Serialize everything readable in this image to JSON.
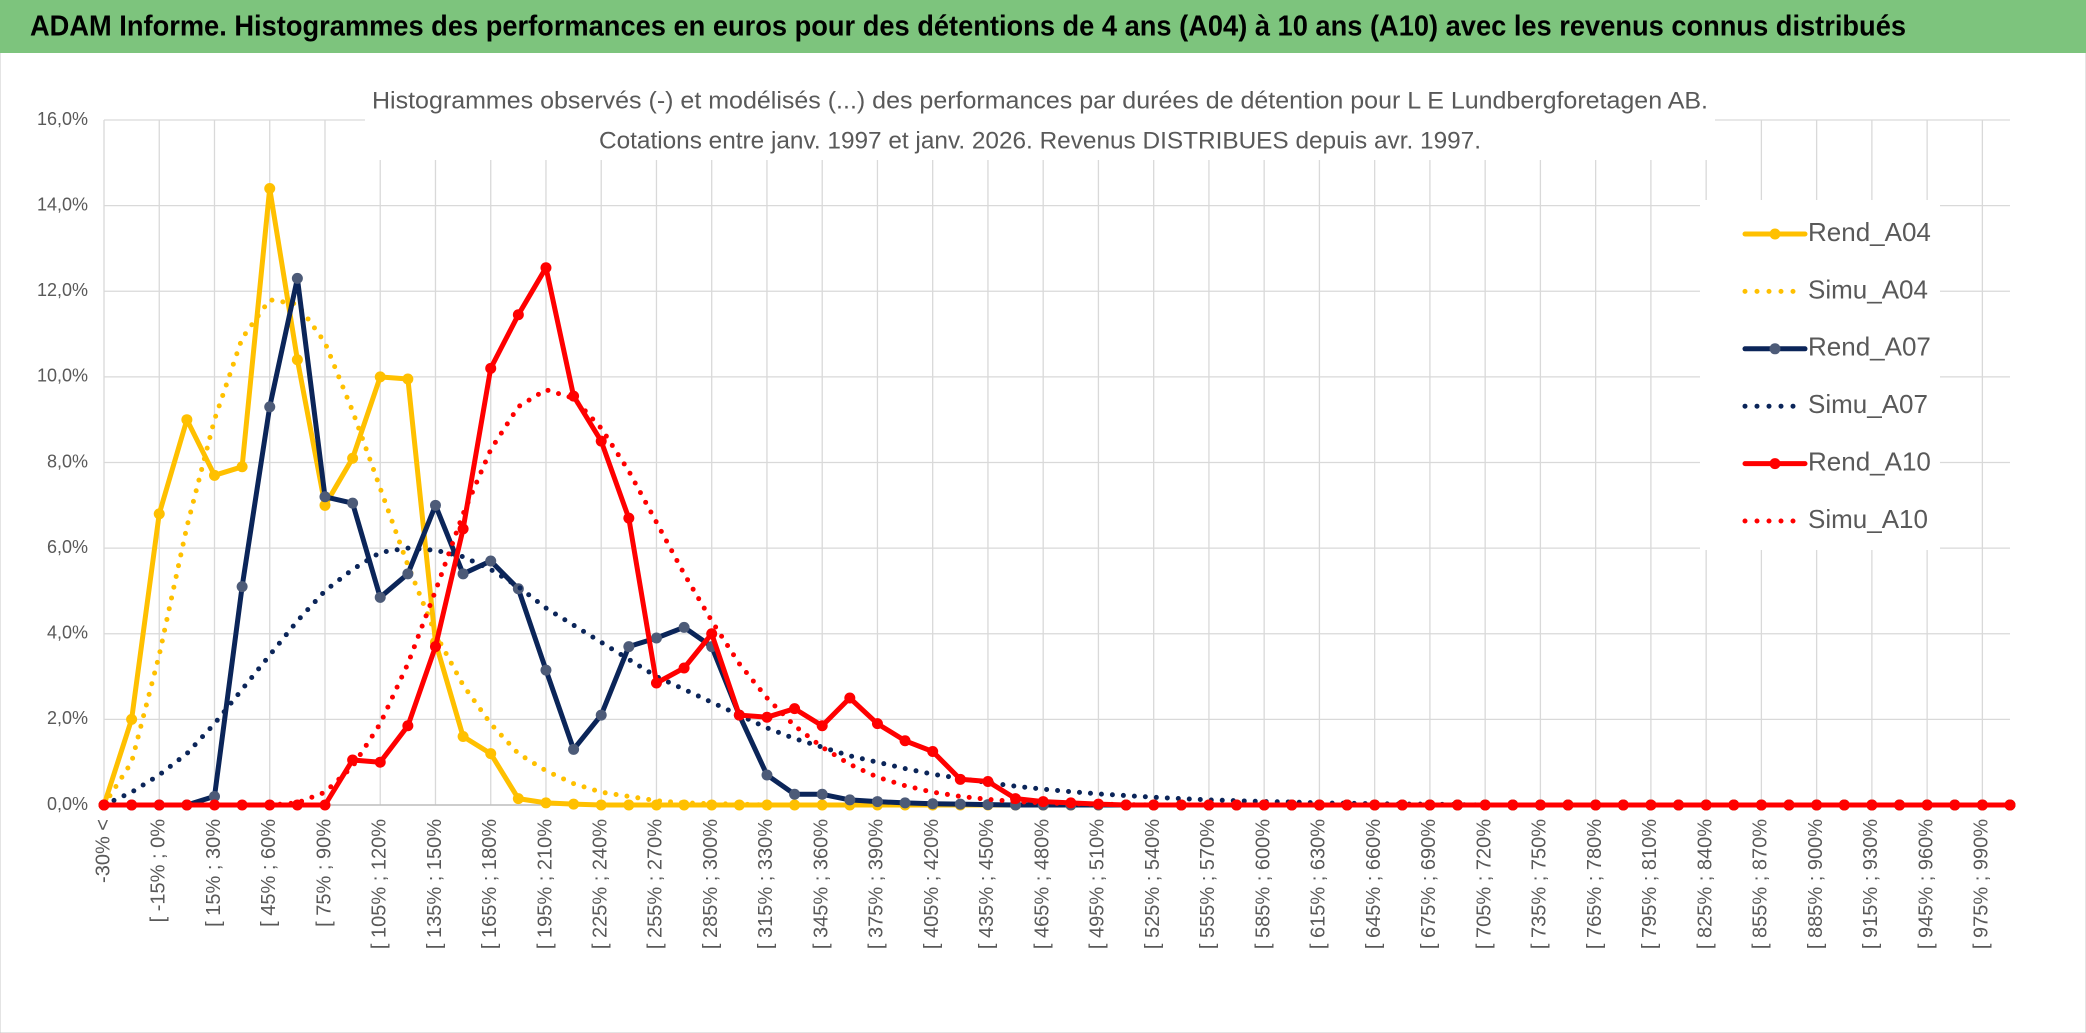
{
  "header": {
    "title": "ADAM Informe. Histogrammes des performances en euros pour des détentions de 4 ans (A04) à 10 ans (A10) avec les revenus connus distribués"
  },
  "chart_data": {
    "type": "line",
    "title": "Histogrammes observés (-) et modélisés (...) des performances par durées de détention pour L E Lundbergforetagen AB.",
    "subtitle": "Cotations entre janv. 1997 et janv. 2026. Revenus DISTRIBUES depuis avr. 1997.",
    "categories": [
      "-30% <",
      null,
      "[ -15% ; 0%",
      null,
      "[ 15% ; 30%",
      null,
      "[ 45% ; 60%",
      null,
      "[ 75% ; 90%",
      null,
      "[ 105% ; 120%",
      null,
      "[ 135% ; 150%",
      null,
      "[ 165% ; 180%",
      null,
      "[ 195% ; 210%",
      null,
      "[ 225% ; 240%",
      null,
      "[ 255% ; 270%",
      null,
      "[ 285% ; 300%",
      null,
      "[ 315% ; 330%",
      null,
      "[ 345% ; 360%",
      null,
      "[ 375% ; 390%",
      null,
      "[ 405% ; 420%",
      null,
      "[ 435% ; 450%",
      null,
      "[ 465% ; 480%",
      null,
      "[ 495% ; 510%",
      null,
      "[ 525% ; 540%",
      null,
      "[ 555% ; 570%",
      null,
      "[ 585% ; 600%",
      null,
      "[ 615% ; 630%",
      null,
      "[ 645% ; 660%",
      null,
      "[ 675% ; 690%",
      null,
      "[ 705% ; 720%",
      null,
      "[ 735% ; 750%",
      null,
      "[ 765% ; 780%",
      null,
      "[ 795% ; 810%",
      null,
      "[ 825% ; 840%",
      null,
      "[ 855% ; 870%",
      null,
      "[ 885% ; 900%",
      null,
      "[ 915% ; 930%",
      null,
      "[ 945% ; 960%",
      null,
      "[ 975% ; 990%",
      null
    ],
    "ylim": [
      0,
      16
    ],
    "yticks": [
      {
        "value": 0,
        "label": "0,0%"
      },
      {
        "value": 2,
        "label": "2,0%"
      },
      {
        "value": 4,
        "label": "4,0%"
      },
      {
        "value": 6,
        "label": "6,0%"
      },
      {
        "value": 8,
        "label": "8,0%"
      },
      {
        "value": 10,
        "label": "10,0%"
      },
      {
        "value": 12,
        "label": "12,0%"
      },
      {
        "value": 14,
        "label": "14,0%"
      },
      {
        "value": 16,
        "label": "16,0%"
      }
    ],
    "grid": true,
    "legend": "right",
    "series": [
      {
        "name": "Rend_A04",
        "color": "#ffc000",
        "line_style": "solid",
        "markers": true,
        "values": [
          0,
          2.0,
          6.8,
          9.0,
          7.7,
          7.9,
          14.4,
          10.4,
          7.0,
          8.1,
          10.0,
          9.95,
          3.8,
          1.6,
          1.2,
          0.15,
          0.05,
          0.02,
          0,
          0,
          0,
          0,
          0,
          0,
          0,
          0,
          0,
          0,
          0,
          0,
          0,
          0,
          0,
          0,
          0,
          0,
          0,
          0,
          0,
          0,
          0,
          0,
          0,
          0,
          0,
          0,
          0,
          0,
          0,
          0,
          0,
          0,
          0,
          0,
          0,
          0,
          0,
          0,
          0,
          0,
          0,
          0,
          0,
          0,
          0,
          0,
          0,
          0,
          0,
          0
        ]
      },
      {
        "name": "Simu_A04",
        "color": "#ffc000",
        "line_style": "dotted",
        "markers": false,
        "values": [
          0,
          1.0,
          3.5,
          6.5,
          9.0,
          10.9,
          11.8,
          11.7,
          10.8,
          9.2,
          7.4,
          5.6,
          4.0,
          2.8,
          1.9,
          1.2,
          0.8,
          0.5,
          0.3,
          0.2,
          0.1,
          0.05,
          0.03,
          0.02,
          0,
          0,
          0,
          0,
          0,
          0,
          0,
          0,
          0,
          0,
          0,
          0,
          0,
          0,
          0,
          0,
          0,
          0,
          0,
          0,
          0,
          0,
          0,
          0,
          0,
          0,
          0,
          0,
          0,
          0,
          0,
          0,
          0,
          0,
          0,
          0,
          0,
          0,
          0,
          0,
          0,
          0,
          0,
          0,
          0,
          0
        ]
      },
      {
        "name": "Rend_A07",
        "color": "#0b2559",
        "marker_color": "#4d5b78",
        "line_style": "solid",
        "markers": true,
        "values": [
          0,
          0,
          0,
          0,
          0.2,
          5.1,
          9.3,
          12.3,
          7.2,
          7.05,
          4.85,
          5.4,
          7.0,
          5.4,
          5.7,
          5.05,
          3.15,
          1.3,
          2.1,
          3.7,
          3.9,
          4.15,
          3.7,
          2.1,
          0.7,
          0.25,
          0.25,
          0.12,
          0.08,
          0.05,
          0.03,
          0.02,
          0.01,
          0,
          0,
          0,
          0,
          0,
          0,
          0,
          0,
          0,
          0,
          0,
          0,
          0,
          0,
          0,
          0,
          0,
          0,
          0,
          0,
          0,
          0,
          0,
          0,
          0,
          0,
          0,
          0,
          0,
          0,
          0,
          0,
          0,
          0,
          0,
          0,
          0
        ]
      },
      {
        "name": "Simu_A07",
        "color": "#0b2559",
        "line_style": "dotted",
        "markers": false,
        "values": [
          0,
          0.3,
          0.7,
          1.2,
          1.9,
          2.7,
          3.5,
          4.3,
          5.0,
          5.5,
          5.9,
          6.0,
          5.95,
          5.8,
          5.5,
          5.1,
          4.6,
          4.2,
          3.8,
          3.4,
          3.0,
          2.7,
          2.4,
          2.1,
          1.8,
          1.55,
          1.35,
          1.15,
          1.0,
          0.85,
          0.72,
          0.62,
          0.52,
          0.44,
          0.37,
          0.31,
          0.26,
          0.22,
          0.18,
          0.15,
          0.12,
          0.1,
          0.08,
          0.07,
          0.05,
          0.04,
          0.03,
          0.02,
          0.02,
          0.01,
          0,
          0,
          0,
          0,
          0,
          0,
          0,
          0,
          0,
          0,
          0,
          0,
          0,
          0,
          0,
          0,
          0,
          0,
          0,
          0
        ]
      },
      {
        "name": "Rend_A10",
        "color": "#ff0000",
        "line_style": "solid",
        "markers": true,
        "values": [
          0,
          0,
          0,
          0,
          0,
          0,
          0,
          0,
          0,
          1.05,
          1.0,
          1.85,
          3.7,
          6.45,
          10.2,
          11.45,
          12.55,
          9.55,
          8.5,
          6.7,
          2.85,
          3.2,
          4.0,
          2.1,
          2.05,
          2.25,
          1.85,
          2.5,
          1.9,
          1.5,
          1.25,
          0.6,
          0.55,
          0.15,
          0.08,
          0.05,
          0.02,
          0,
          0,
          0,
          0,
          0,
          0,
          0,
          0,
          0,
          0,
          0,
          0,
          0,
          0,
          0,
          0,
          0,
          0,
          0,
          0,
          0,
          0,
          0,
          0,
          0,
          0,
          0,
          0,
          0,
          0,
          0,
          0,
          0
        ]
      },
      {
        "name": "Simu_A10",
        "color": "#ff0000",
        "line_style": "dotted",
        "markers": false,
        "values": [
          0,
          0,
          0,
          0,
          0,
          0,
          0,
          0.05,
          0.3,
          0.9,
          1.9,
          3.3,
          5.0,
          6.8,
          8.3,
          9.3,
          9.7,
          9.5,
          8.8,
          7.8,
          6.6,
          5.4,
          4.3,
          3.3,
          2.5,
          1.85,
          1.35,
          0.95,
          0.65,
          0.45,
          0.3,
          0.2,
          0.13,
          0.08,
          0.05,
          0.03,
          0.02,
          0.01,
          0,
          0,
          0,
          0,
          0,
          0,
          0,
          0,
          0,
          0,
          0,
          0,
          0,
          0,
          0,
          0,
          0,
          0,
          0,
          0,
          0,
          0,
          0,
          0,
          0,
          0,
          0,
          0,
          0,
          0,
          0,
          0
        ]
      }
    ]
  }
}
